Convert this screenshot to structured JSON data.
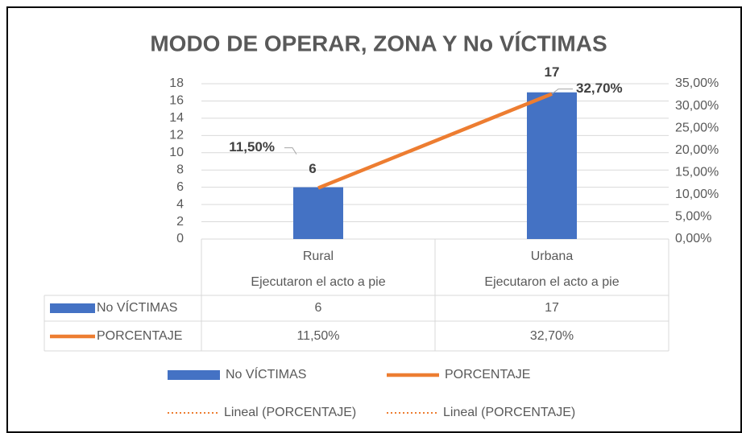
{
  "chart_data": {
    "type": "bar",
    "title": "MODO DE OPERAR, ZONA Y No VÍCTIMAS",
    "categories": [
      "Rural",
      "Urbana"
    ],
    "category_groups": [
      "Ejecutaron el acto a pie",
      "Ejecutaron el acto a pie"
    ],
    "series": [
      {
        "name": "No VÍCTIMAS",
        "type": "bar",
        "color": "#4472c4",
        "values": [
          6,
          17
        ]
      },
      {
        "name": "PORCENTAJE",
        "type": "line",
        "axis": "y2",
        "color": "#ed7d31",
        "values": [
          11.5,
          32.7
        ],
        "value_labels": [
          "11,50%",
          "32,70%"
        ]
      }
    ],
    "trendlines": [
      {
        "name": "Lineal (PORCENTAJE)",
        "series": 1,
        "color": "#ed7d31"
      },
      {
        "name": "Lineal (PORCENTAJE)",
        "series": 1,
        "color": "#ed7d31"
      }
    ],
    "ylim": [
      0,
      18
    ],
    "yticks": [
      0,
      2,
      4,
      6,
      8,
      10,
      12,
      14,
      16,
      18
    ],
    "y2lim": [
      0,
      35
    ],
    "y2ticks": [
      {
        "value": 0,
        "label": "0,00%"
      },
      {
        "value": 5,
        "label": "5,00%"
      },
      {
        "value": 10,
        "label": "10,00%"
      },
      {
        "value": 15,
        "label": "15,00%"
      },
      {
        "value": 20,
        "label": "20,00%"
      },
      {
        "value": 25,
        "label": "25,00%"
      },
      {
        "value": 30,
        "label": "30,00%"
      },
      {
        "value": 35,
        "label": "35,00%"
      }
    ],
    "grid": true,
    "data_table": true,
    "legend": "bottom"
  }
}
